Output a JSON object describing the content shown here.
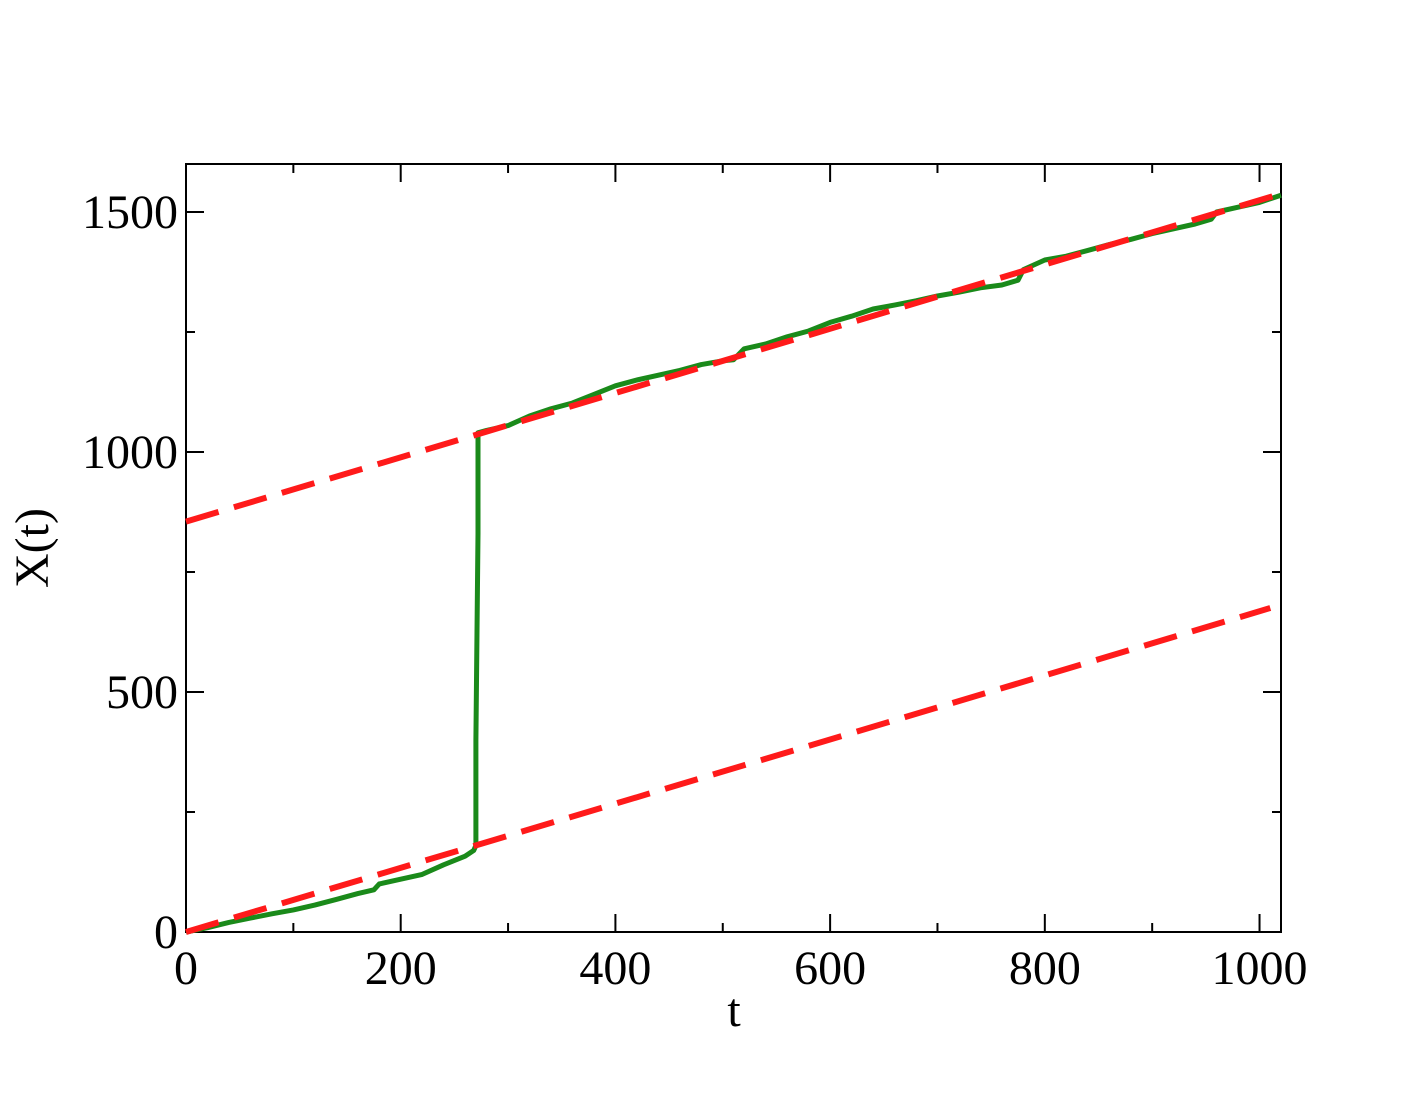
{
  "chart_data": {
    "type": "line",
    "xlabel": "t",
    "ylabel": "X(t)",
    "xlim": [
      0,
      1020
    ],
    "ylim": [
      0,
      1600
    ],
    "x_ticks": [
      0,
      200,
      400,
      600,
      800,
      1000
    ],
    "x_tick_labels": [
      "0",
      "200",
      "400",
      "600",
      "800",
      "1000"
    ],
    "y_ticks": [
      0,
      500,
      1000,
      1500
    ],
    "y_tick_labels": [
      "0",
      "500",
      "1000",
      "1500"
    ],
    "x_minor_ticks": [
      100,
      300,
      500,
      700,
      900
    ],
    "y_minor_ticks": [
      250,
      750,
      1250
    ],
    "grid": false,
    "series": [
      {
        "style": "solid",
        "color": "#1a8a1a",
        "points": [
          [
            0,
            0
          ],
          [
            20,
            9
          ],
          [
            40,
            20
          ],
          [
            60,
            29
          ],
          [
            80,
            38
          ],
          [
            100,
            46
          ],
          [
            120,
            56
          ],
          [
            140,
            68
          ],
          [
            160,
            80
          ],
          [
            175,
            88
          ],
          [
            180,
            100
          ],
          [
            200,
            110
          ],
          [
            220,
            120
          ],
          [
            240,
            140
          ],
          [
            260,
            158
          ],
          [
            268,
            170
          ],
          [
            270,
            180
          ],
          [
            270,
            400
          ],
          [
            272,
            830
          ],
          [
            272,
            1040
          ],
          [
            280,
            1045
          ],
          [
            300,
            1055
          ],
          [
            320,
            1075
          ],
          [
            340,
            1090
          ],
          [
            360,
            1102
          ],
          [
            380,
            1120
          ],
          [
            400,
            1138
          ],
          [
            420,
            1150
          ],
          [
            440,
            1160
          ],
          [
            460,
            1170
          ],
          [
            480,
            1182
          ],
          [
            500,
            1190
          ],
          [
            510,
            1192
          ],
          [
            520,
            1215
          ],
          [
            540,
            1225
          ],
          [
            560,
            1240
          ],
          [
            580,
            1252
          ],
          [
            600,
            1270
          ],
          [
            620,
            1283
          ],
          [
            640,
            1298
          ],
          [
            660,
            1306
          ],
          [
            680,
            1315
          ],
          [
            700,
            1325
          ],
          [
            720,
            1333
          ],
          [
            740,
            1342
          ],
          [
            760,
            1348
          ],
          [
            775,
            1358
          ],
          [
            780,
            1380
          ],
          [
            800,
            1400
          ],
          [
            820,
            1408
          ],
          [
            840,
            1420
          ],
          [
            860,
            1432
          ],
          [
            880,
            1443
          ],
          [
            900,
            1455
          ],
          [
            920,
            1465
          ],
          [
            940,
            1475
          ],
          [
            955,
            1485
          ],
          [
            960,
            1500
          ],
          [
            980,
            1510
          ],
          [
            1000,
            1520
          ],
          [
            1020,
            1535
          ]
        ]
      },
      {
        "style": "dashed",
        "color": "#ff1a1a",
        "points": [
          [
            0,
            0
          ],
          [
            1010,
            675
          ]
        ]
      },
      {
        "style": "dashed",
        "color": "#ff1a1a",
        "points": [
          [
            0,
            855
          ],
          [
            1020,
            1538
          ]
        ]
      }
    ]
  }
}
